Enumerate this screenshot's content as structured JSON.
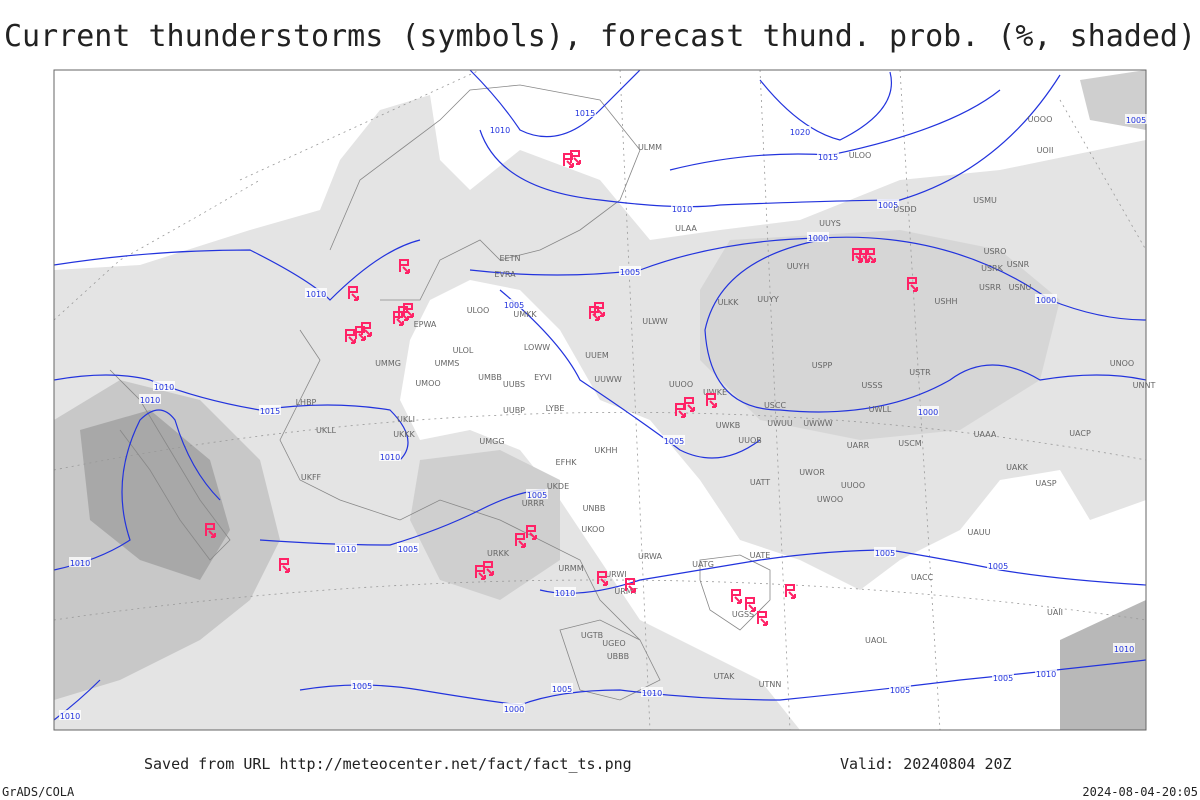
{
  "title": "Current thunderstorms (symbols), forecast thund. prob. (%, shaded)",
  "footer": {
    "source": "Saved from URL http://meteocenter.net/fact/fact_ts.png",
    "valid": "Valid: 20240804 20Z",
    "credit": "GrADS/COLA",
    "timestamp": "2024-08-04-20:05"
  },
  "isobar_labels": [
    1015,
    1010,
    1020,
    1015,
    1010,
    1005,
    1000,
    1005,
    1010,
    1005,
    1000,
    1010,
    1010,
    1015,
    1000,
    1005,
    1010,
    1005,
    1010,
    1005,
    1010,
    1005,
    1005,
    1010,
    1005,
    1005,
    1010,
    1000,
    1005,
    1010,
    1005,
    1010,
    1010,
    1005
  ],
  "stations": [
    "ULMM",
    "ULAA",
    "UUYS",
    "USMU",
    "USDD",
    "ULOO",
    "UOII",
    "UOOO",
    "UUYH",
    "USRO",
    "USRK",
    "USNR",
    "USRR",
    "USNU",
    "UUYY",
    "ULKK",
    "USHH",
    "ULWW",
    "UUEM",
    "UUWW",
    "UUOO",
    "USPP",
    "USSS",
    "USTR",
    "UWKE",
    "USCC",
    "UWLL",
    "UWKB",
    "UWUU",
    "UWWW",
    "UUOB",
    "EFHK",
    "EETN",
    "EVRA",
    "ULOO",
    "UMKK",
    "EPWA",
    "UMMG",
    "UMMS",
    "UMBB",
    "UMOO",
    "UUBS",
    "EYVI",
    "ULOL",
    "LOWW",
    "LHBP",
    "UKLL",
    "UKLI",
    "UKKK",
    "UMGG",
    "UUBP",
    "LYBE",
    "UKFF",
    "URKK",
    "URMM",
    "URMT",
    "URWI",
    "URWA",
    "UATG",
    "UATE",
    "UGSS",
    "UGTB",
    "UGEO",
    "UBBB",
    "UTAK",
    "UTNN",
    "UAOL",
    "UACC",
    "UAKK",
    "UASP",
    "UACP",
    "UAAA",
    "UAII",
    "UAUU",
    "USCM",
    "UARR",
    "UATT",
    "UWOO",
    "UWOR",
    "UUOO",
    "UKHH",
    "UKDE",
    "URRR",
    "UKOO",
    "UNBB",
    "UNNT",
    "UNOO"
  ]
}
